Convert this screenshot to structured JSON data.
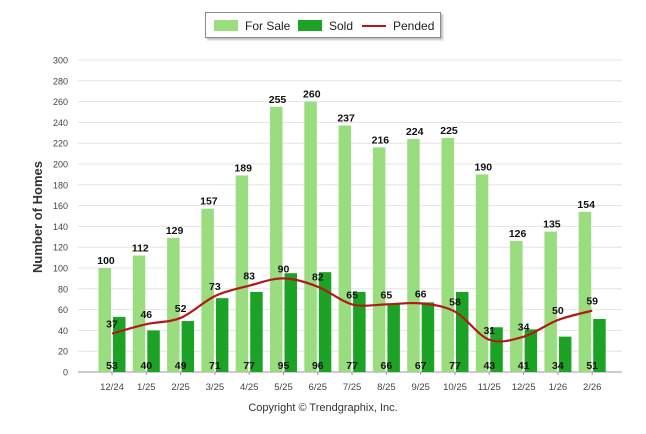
{
  "chart_data": {
    "type": "bar",
    "categories": [
      "12/24",
      "1/25",
      "2/25",
      "3/25",
      "4/25",
      "5/25",
      "6/25",
      "7/25",
      "8/25",
      "9/25",
      "10/25",
      "11/25",
      "12/25",
      "1/26",
      "2/26"
    ],
    "series": [
      {
        "name": "For Sale",
        "kind": "bar",
        "color": "#99dd7f",
        "values": [
          100,
          112,
          129,
          157,
          189,
          255,
          260,
          237,
          216,
          224,
          225,
          190,
          126,
          135,
          154
        ]
      },
      {
        "name": "Sold",
        "kind": "bar",
        "color": "#1ca326",
        "values": [
          53,
          40,
          49,
          71,
          77,
          95,
          96,
          77,
          66,
          67,
          77,
          43,
          41,
          34,
          51
        ]
      },
      {
        "name": "Pended",
        "kind": "line",
        "color": "#b21a1a",
        "values": [
          37,
          46,
          52,
          73,
          83,
          90,
          82,
          65,
          65,
          66,
          58,
          31,
          34,
          50,
          59
        ]
      }
    ],
    "ylabel": "Number of Homes",
    "xlabel": "",
    "ylim": [
      0,
      300
    ],
    "yticks": [
      0,
      20,
      40,
      60,
      80,
      100,
      120,
      140,
      160,
      180,
      200,
      220,
      240,
      260,
      280,
      300
    ],
    "grid": true,
    "legend": "top-center"
  },
  "copyright": "Copyright © Trendgraphix, Inc."
}
